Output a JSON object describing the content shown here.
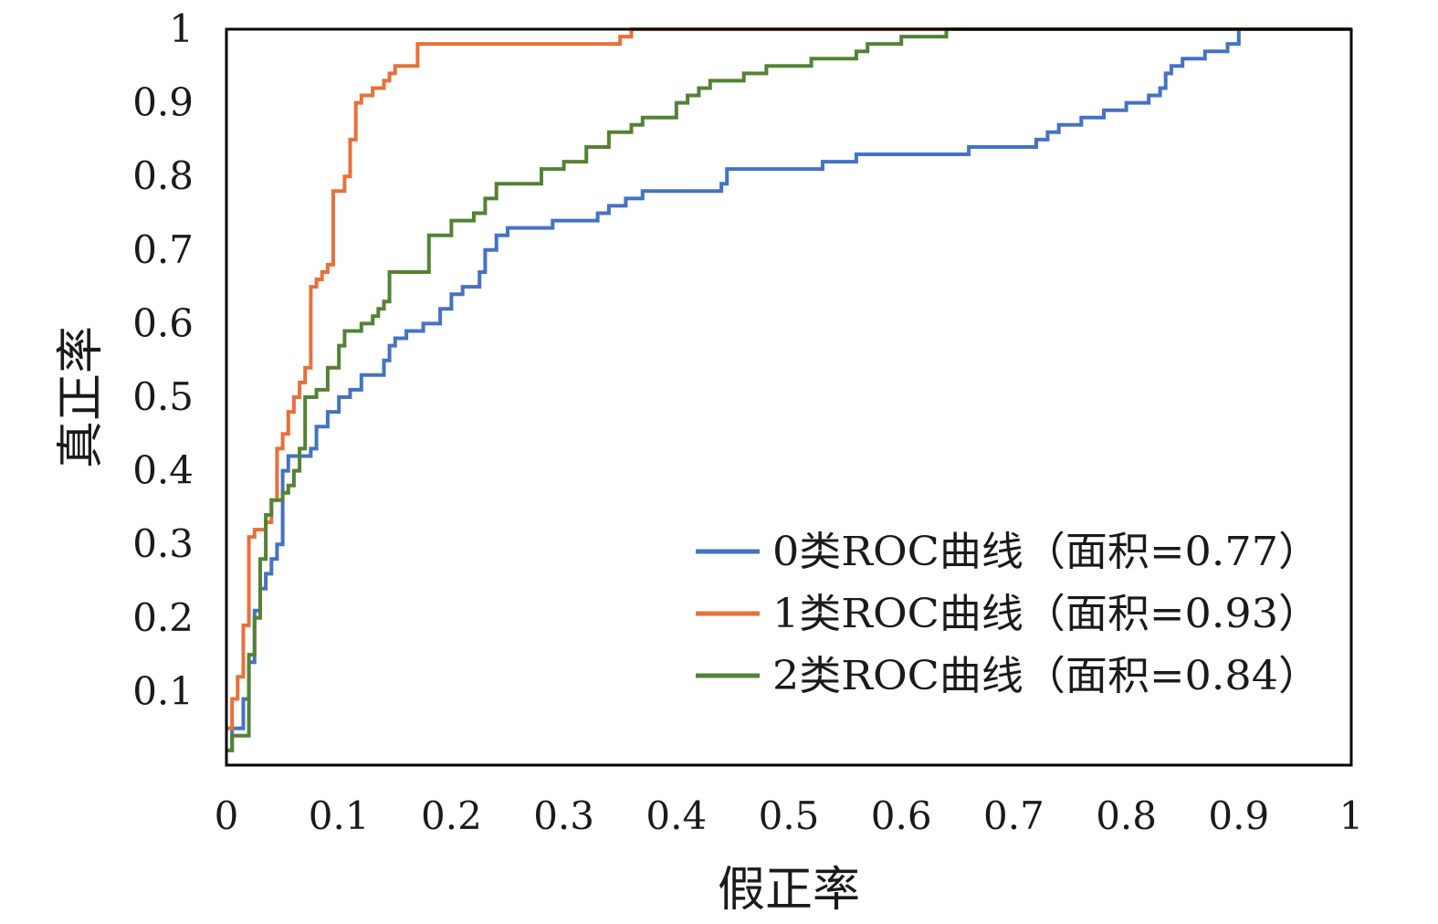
{
  "chart_data": {
    "type": "line",
    "title": "",
    "xlabel": "假正率",
    "ylabel": "真正率",
    "xlim": [
      0,
      1
    ],
    "ylim": [
      0,
      1
    ],
    "x_ticks": [
      "0",
      "0.1",
      "0.2",
      "0.3",
      "0.4",
      "0.5",
      "0.6",
      "0.7",
      "0.8",
      "0.9",
      "1"
    ],
    "y_ticks": [
      "0.1",
      "0.2",
      "0.3",
      "0.4",
      "0.5",
      "0.6",
      "0.7",
      "0.8",
      "0.9",
      "1"
    ],
    "grid": false,
    "legend_position": "bottom-right",
    "series": [
      {
        "name": "0类ROC曲线（面积=0.77）",
        "color": "#4472C4",
        "x": [
          0,
          0.005,
          0.015,
          0.02,
          0.025,
          0.03,
          0.035,
          0.04,
          0.045,
          0.05,
          0.055,
          0.06,
          0.075,
          0.08,
          0.09,
          0.1,
          0.11,
          0.12,
          0.14,
          0.145,
          0.15,
          0.16,
          0.175,
          0.19,
          0.2,
          0.21,
          0.22,
          0.225,
          0.23,
          0.24,
          0.25,
          0.28,
          0.29,
          0.3,
          0.33,
          0.34,
          0.355,
          0.37,
          0.43,
          0.44,
          0.445,
          0.5,
          0.53,
          0.56,
          0.58,
          0.66,
          0.72,
          0.73,
          0.74,
          0.76,
          0.78,
          0.8,
          0.82,
          0.83,
          0.835,
          0.84,
          0.85,
          0.87,
          0.89,
          0.9,
          1.0
        ],
        "y": [
          0.02,
          0.05,
          0.09,
          0.14,
          0.21,
          0.24,
          0.26,
          0.28,
          0.3,
          0.4,
          0.42,
          0.42,
          0.43,
          0.46,
          0.48,
          0.5,
          0.51,
          0.53,
          0.55,
          0.57,
          0.58,
          0.59,
          0.6,
          0.62,
          0.64,
          0.65,
          0.65,
          0.67,
          0.7,
          0.72,
          0.73,
          0.73,
          0.74,
          0.74,
          0.75,
          0.76,
          0.77,
          0.78,
          0.78,
          0.79,
          0.81,
          0.81,
          0.82,
          0.83,
          0.83,
          0.84,
          0.85,
          0.86,
          0.87,
          0.88,
          0.89,
          0.9,
          0.91,
          0.92,
          0.94,
          0.95,
          0.96,
          0.97,
          0.98,
          1.0,
          1.0
        ],
        "line_style": "step"
      },
      {
        "name": "1类ROC曲线（面积=0.93）",
        "color": "#E8703A",
        "x": [
          0,
          0.005,
          0.01,
          0.015,
          0.02,
          0.025,
          0.035,
          0.04,
          0.045,
          0.05,
          0.055,
          0.06,
          0.065,
          0.07,
          0.075,
          0.08,
          0.085,
          0.09,
          0.095,
          0.1,
          0.105,
          0.11,
          0.115,
          0.12,
          0.13,
          0.14,
          0.145,
          0.15,
          0.17,
          0.18,
          0.25,
          0.3,
          0.35,
          0.36,
          0.4,
          0.6,
          0.65,
          1.0
        ],
        "y": [
          0.05,
          0.09,
          0.12,
          0.19,
          0.31,
          0.32,
          0.33,
          0.36,
          0.43,
          0.45,
          0.48,
          0.5,
          0.52,
          0.54,
          0.65,
          0.66,
          0.67,
          0.68,
          0.78,
          0.78,
          0.8,
          0.85,
          0.9,
          0.91,
          0.92,
          0.93,
          0.94,
          0.95,
          0.98,
          0.98,
          0.98,
          0.98,
          0.99,
          1.0,
          1.0,
          1.0,
          1.0,
          1.0
        ],
        "line_style": "step"
      },
      {
        "name": "2类ROC曲线（面积=0.84）",
        "color": "#548235",
        "x": [
          0,
          0.005,
          0.02,
          0.025,
          0.03,
          0.035,
          0.04,
          0.045,
          0.05,
          0.055,
          0.06,
          0.065,
          0.07,
          0.08,
          0.09,
          0.1,
          0.105,
          0.11,
          0.12,
          0.13,
          0.135,
          0.14,
          0.145,
          0.15,
          0.18,
          0.2,
          0.22,
          0.23,
          0.24,
          0.25,
          0.28,
          0.29,
          0.3,
          0.32,
          0.34,
          0.36,
          0.37,
          0.38,
          0.4,
          0.41,
          0.42,
          0.43,
          0.46,
          0.48,
          0.5,
          0.52,
          0.56,
          0.57,
          0.59,
          0.6,
          0.62,
          0.64,
          0.65,
          0.66,
          0.7,
          1.0
        ],
        "y": [
          0.02,
          0.04,
          0.15,
          0.2,
          0.28,
          0.34,
          0.36,
          0.36,
          0.37,
          0.38,
          0.4,
          0.43,
          0.5,
          0.51,
          0.54,
          0.57,
          0.59,
          0.59,
          0.6,
          0.61,
          0.62,
          0.63,
          0.67,
          0.67,
          0.72,
          0.74,
          0.75,
          0.77,
          0.79,
          0.79,
          0.81,
          0.81,
          0.82,
          0.84,
          0.86,
          0.87,
          0.88,
          0.88,
          0.9,
          0.91,
          0.92,
          0.93,
          0.94,
          0.95,
          0.95,
          0.96,
          0.97,
          0.98,
          0.98,
          0.99,
          0.99,
          1.0,
          1.0,
          1.0,
          1.0,
          1.0
        ],
        "line_style": "step"
      }
    ]
  }
}
